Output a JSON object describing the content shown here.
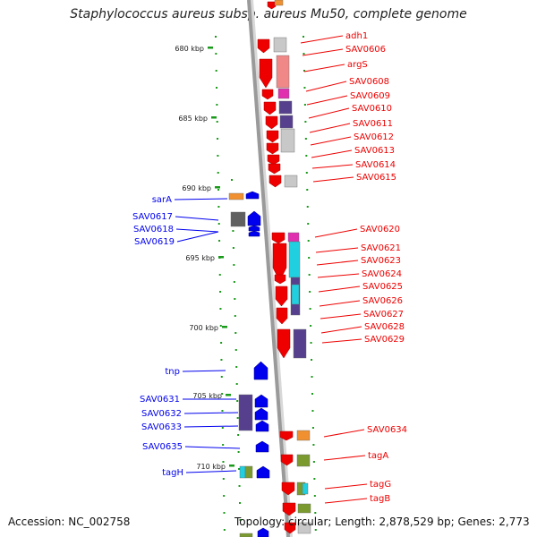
{
  "title": "Staphylococcus aureus subsp. aureus Mu50, complete genome",
  "footer": {
    "accession": "Accession: NC_002758",
    "topology": "Topology: circular; Length: 2,878,529 bp; Genes: 2,773"
  },
  "colors": {
    "forward_gene": "#ee0000",
    "reverse_gene": "#0000ee",
    "backbone": "#9a9a9a",
    "ruler_dots": "#1a9a1a"
  },
  "scale": {
    "ticks": [
      "680 kbp",
      "685 kbp",
      "690 kbp",
      "695 kbp",
      "700 kbp",
      "705 kbp",
      "710 kbp"
    ]
  },
  "genes_right": [
    "adh1",
    "SAV0606",
    "argS",
    "SAV0608",
    "SAV0609",
    "SAV0610",
    "SAV0611",
    "SAV0612",
    "SAV0613",
    "SAV0614",
    "SAV0615",
    "SAV0620",
    "SAV0621",
    "SAV0623",
    "SAV0624",
    "SAV0625",
    "SAV0626",
    "SAV0627",
    "SAV0628",
    "SAV0629",
    "SAV0634",
    "tagA",
    "tagG",
    "tagB"
  ],
  "genes_left": [
    "sarA",
    "SAV0617",
    "SAV0618",
    "SAV0619",
    "tnp",
    "SAV0631",
    "SAV0632",
    "SAV0633",
    "SAV0635",
    "tagH"
  ]
}
